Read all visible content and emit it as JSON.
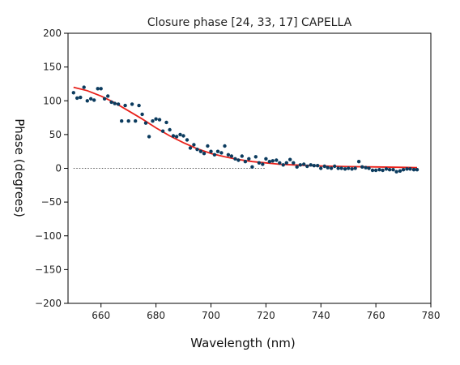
{
  "chart_data": {
    "type": "scatter",
    "title": "Closure phase [24, 33, 17] CAPELLA",
    "xlabel": "Wavelength (nm)",
    "ylabel": "Phase (degrees)",
    "xlim": [
      648,
      780
    ],
    "ylim": [
      -200,
      200
    ],
    "xticks": [
      660,
      680,
      700,
      720,
      740,
      760,
      780
    ],
    "yticks": [
      200,
      150,
      100,
      50,
      0,
      -50,
      -100,
      -150,
      -200
    ],
    "grid": false,
    "colors": {
      "points": "#0b3b5e",
      "fit": "#e8211a",
      "zero_line": "#555555"
    },
    "series": [
      {
        "kind": "scatter",
        "x": [
          650,
          651.3,
          652.5,
          653.8,
          655,
          656.3,
          657.5,
          658.8,
          660,
          661.3,
          662.5,
          663.8,
          665,
          666.3,
          667.5,
          668.8,
          670,
          671.3,
          672.5,
          673.8,
          675,
          676.3,
          677.5,
          678.8,
          680,
          681.3,
          682.5,
          683.8,
          685,
          686.3,
          687.5,
          688.8,
          690,
          691.3,
          692.5,
          693.8,
          695,
          696.3,
          697.5,
          698.8,
          700,
          701.3,
          702.5,
          703.8,
          705,
          706.3,
          707.5,
          708.8,
          710,
          711.3,
          712.5,
          713.8,
          715,
          716.3,
          717.5,
          718.8,
          720,
          721.3,
          722.5,
          723.8,
          725,
          726.3,
          727.5,
          728.8,
          730,
          731.3,
          732.5,
          733.8,
          735,
          736.3,
          737.5,
          738.8,
          740,
          741.3,
          742.5,
          743.8,
          745,
          746.3,
          747.5,
          748.8,
          750,
          751.3,
          752.5,
          753.8,
          755,
          756.3,
          757.5,
          758.8,
          760,
          761.3,
          762.5,
          763.8,
          765,
          766.3,
          767.5,
          768.8,
          770,
          771.3,
          772.5,
          773.8,
          775
        ],
        "y": [
          112,
          104,
          105,
          120,
          100,
          103,
          101,
          118,
          118,
          103,
          107,
          98,
          96,
          95,
          70,
          93,
          70,
          95,
          70,
          93,
          80,
          67,
          47,
          70,
          73,
          72,
          55,
          68,
          57,
          48,
          47,
          50,
          48,
          42,
          30,
          35,
          28,
          25,
          22,
          33,
          25,
          20,
          25,
          23,
          33,
          20,
          18,
          14,
          12,
          18,
          10,
          14,
          2,
          17,
          8,
          6,
          14,
          10,
          11,
          12,
          8,
          5,
          8,
          13,
          8,
          2,
          5,
          6,
          3,
          5,
          4,
          4,
          0,
          3,
          1,
          0,
          3,
          0,
          0,
          -1,
          0,
          -1,
          0,
          10,
          2,
          1,
          0,
          -3,
          -3,
          -2,
          -3,
          -1,
          -2,
          -2,
          -5,
          -4,
          -2,
          -1,
          -1,
          -2,
          -2
        ]
      },
      {
        "kind": "line",
        "x": [
          650,
          655,
          660,
          665,
          670,
          675,
          680,
          685,
          690,
          695,
          700,
          705,
          710,
          715,
          720,
          725,
          730,
          740,
          750,
          760,
          770,
          775
        ],
        "y": [
          120,
          115,
          107,
          97,
          85,
          73,
          60,
          48,
          38,
          29,
          22,
          17,
          13,
          10,
          8,
          6,
          5,
          3.5,
          2.5,
          2,
          1.5,
          1
        ]
      },
      {
        "kind": "reference",
        "x": [
          650,
          720
        ],
        "y": [
          0,
          0
        ]
      }
    ]
  }
}
